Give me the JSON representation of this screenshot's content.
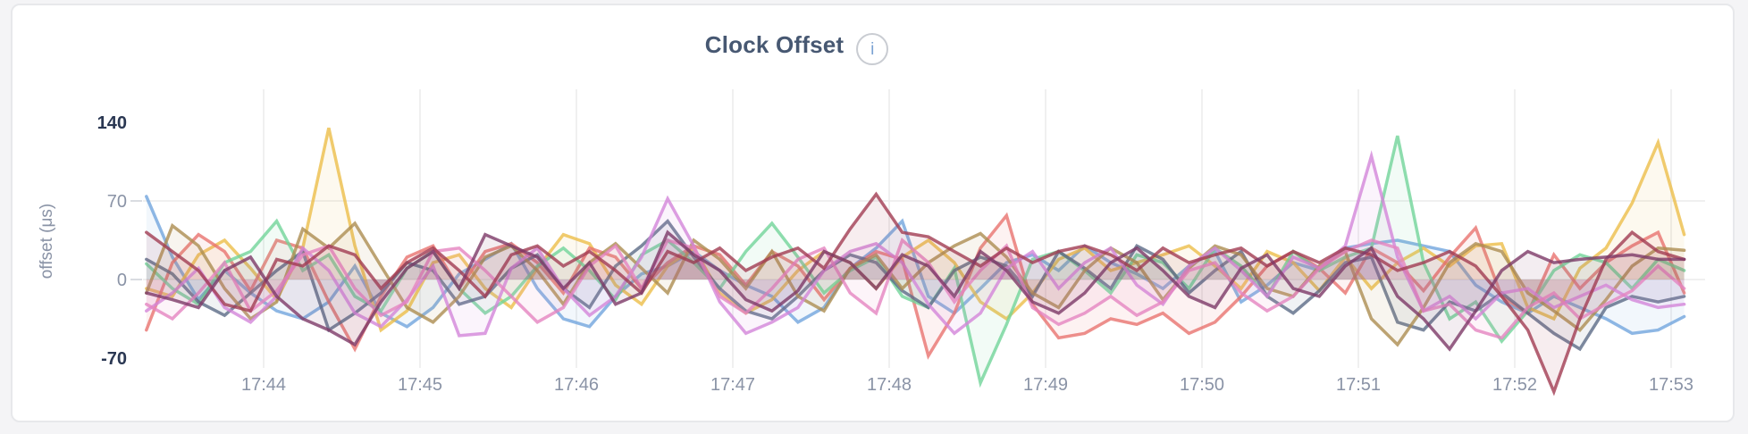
{
  "header": {
    "title": "Clock Offset",
    "info_icon_glyph": "i"
  },
  "chart_data": {
    "type": "line",
    "title": "Clock Offset",
    "xlabel": "",
    "ylabel": "offset (μs)",
    "x_start": "17:43:15",
    "x_step_seconds": 10,
    "x_ticks": [
      "17:44",
      "17:45",
      "17:46",
      "17:47",
      "17:48",
      "17:49",
      "17:50",
      "17:51",
      "17:52",
      "17:53"
    ],
    "y_ticks": [
      140,
      70,
      0,
      -70
    ],
    "y_ticks_emphasized": [
      140,
      -70
    ],
    "y_gridlines": [
      70,
      0
    ],
    "ylim": [
      -70,
      140
    ],
    "grid": "on",
    "legend": "none",
    "colors": {
      "tick_minor": "#8a93a6",
      "tick_extreme": "#2a3752",
      "gridline": "#ececec",
      "title": "#475872"
    },
    "series": [
      {
        "name": "series-1",
        "color": "#72a5dd",
        "values": [
          74,
          20,
          -18,
          8,
          -12,
          -28,
          -35,
          -20,
          12,
          -30,
          -42,
          -25,
          5,
          18,
          32,
          -8,
          -35,
          -42,
          -15,
          5,
          12,
          25,
          8,
          -5,
          -15,
          -38,
          -25,
          10,
          28,
          52,
          -15,
          -30,
          -8,
          15,
          22,
          8,
          30,
          15,
          5,
          -8,
          12,
          25,
          -20,
          -5,
          15,
          8,
          28,
          32,
          35,
          30,
          25,
          -5,
          -20,
          -30,
          -15,
          -25,
          -35,
          -48,
          -45,
          -33
        ]
      },
      {
        "name": "series-2",
        "color": "#ecbe4a",
        "values": [
          -8,
          -15,
          22,
          35,
          10,
          -18,
          28,
          135,
          30,
          -45,
          -28,
          15,
          22,
          -8,
          -25,
          10,
          40,
          32,
          -5,
          -22,
          12,
          28,
          -12,
          -30,
          -18,
          8,
          25,
          15,
          -8,
          20,
          35,
          15,
          -20,
          -35,
          -12,
          18,
          28,
          8,
          15,
          22,
          30,
          12,
          -8,
          25,
          15,
          -10,
          20,
          -8,
          15,
          28,
          12,
          30,
          32,
          -25,
          -35,
          10,
          28,
          68,
          122,
          40
        ]
      },
      {
        "name": "series-3",
        "color": "#e8736f",
        "values": [
          -45,
          15,
          40,
          25,
          -10,
          35,
          28,
          -20,
          -62,
          -15,
          20,
          30,
          -8,
          25,
          32,
          15,
          -12,
          28,
          20,
          -8,
          15,
          30,
          22,
          -5,
          25,
          12,
          -18,
          10,
          25,
          18,
          -68,
          -30,
          28,
          57,
          -22,
          -52,
          -48,
          -35,
          -40,
          -30,
          -48,
          -38,
          -15,
          12,
          25,
          10,
          -12,
          28,
          15,
          -10,
          20,
          46,
          -15,
          -30,
          22,
          -8,
          15,
          30,
          42,
          -12
        ]
      },
      {
        "name": "series-4",
        "color": "#72d49a",
        "values": [
          14,
          -8,
          -22,
          15,
          25,
          52,
          8,
          22,
          -15,
          -28,
          10,
          25,
          -8,
          -30,
          -15,
          12,
          28,
          8,
          -18,
          22,
          35,
          15,
          -8,
          25,
          50,
          20,
          -12,
          8,
          20,
          -15,
          -25,
          10,
          -92,
          -40,
          18,
          25,
          8,
          -12,
          22,
          15,
          -8,
          28,
          12,
          -15,
          25,
          8,
          20,
          28,
          128,
          15,
          -35,
          -20,
          -55,
          -28,
          8,
          22,
          15,
          -8,
          18,
          8
        ]
      },
      {
        "name": "series-5",
        "color": "#5d6b87",
        "values": [
          18,
          5,
          -20,
          -32,
          -12,
          8,
          25,
          -45,
          -30,
          -12,
          15,
          8,
          -22,
          -15,
          10,
          22,
          -8,
          -25,
          12,
          30,
          52,
          20,
          -8,
          -28,
          -35,
          -15,
          8,
          22,
          15,
          -10,
          -25,
          8,
          20,
          12,
          -15,
          25,
          10,
          -8,
          30,
          18,
          -12,
          8,
          25,
          -15,
          -30,
          -10,
          15,
          20,
          -38,
          -45,
          -20,
          -28,
          -12,
          -30,
          -48,
          -62,
          -25,
          -15,
          -20,
          -15
        ]
      },
      {
        "name": "series-6",
        "color": "#ac8d51",
        "values": [
          -12,
          48,
          30,
          -8,
          -35,
          -20,
          45,
          28,
          50,
          12,
          -25,
          -38,
          -15,
          20,
          30,
          8,
          -22,
          15,
          32,
          10,
          -12,
          35,
          18,
          -8,
          25,
          -15,
          -28,
          10,
          22,
          -8,
          15,
          30,
          41,
          20,
          -12,
          -25,
          8,
          28,
          15,
          -18,
          10,
          30,
          22,
          -8,
          -15,
          12,
          25,
          -35,
          -58,
          -25,
          15,
          32,
          25,
          -12,
          -28,
          -45,
          -18,
          12,
          28,
          26
        ]
      },
      {
        "name": "series-7",
        "color": "#d386d9",
        "values": [
          -28,
          -12,
          10,
          -25,
          -38,
          -15,
          28,
          8,
          -30,
          -42,
          -18,
          12,
          -50,
          -48,
          10,
          28,
          -8,
          -32,
          -15,
          20,
          72,
          30,
          -20,
          -48,
          -38,
          -25,
          8,
          25,
          32,
          15,
          -22,
          -48,
          -30,
          10,
          25,
          -8,
          15,
          28,
          -5,
          -22,
          12,
          28,
          8,
          -15,
          20,
          10,
          30,
          110,
          20,
          -28,
          -15,
          -35,
          -12,
          -8,
          -25,
          -15,
          -5,
          -18,
          -25,
          -22
        ]
      },
      {
        "name": "series-8",
        "color": "#e584c1",
        "values": [
          -22,
          -35,
          -12,
          15,
          -28,
          -10,
          22,
          30,
          -8,
          -32,
          -20,
          25,
          28,
          8,
          -15,
          -38,
          -25,
          12,
          30,
          -8,
          35,
          28,
          -15,
          -30,
          -8,
          18,
          28,
          -12,
          -30,
          35,
          15,
          -20,
          8,
          30,
          -25,
          -40,
          -30,
          -15,
          -32,
          -20,
          8,
          15,
          -12,
          -28,
          -15,
          10,
          25,
          35,
          28,
          -28,
          -22,
          -45,
          -52,
          -25,
          -12,
          -35,
          -22,
          -10,
          12,
          -8
        ]
      },
      {
        "name": "series-9",
        "color": "#a13c52",
        "values": [
          42,
          25,
          8,
          -22,
          -28,
          18,
          12,
          30,
          22,
          -8,
          15,
          28,
          8,
          -15,
          22,
          30,
          12,
          25,
          8,
          -12,
          25,
          15,
          28,
          8,
          20,
          28,
          10,
          45,
          76,
          42,
          38,
          25,
          12,
          28,
          15,
          25,
          30,
          22,
          8,
          28,
          15,
          22,
          28,
          12,
          25,
          15,
          28,
          22,
          8,
          15,
          25,
          12,
          -15,
          -45,
          -100,
          -35,
          18,
          42,
          25,
          18
        ]
      },
      {
        "name": "series-10",
        "color": "#7d3968",
        "values": [
          -12,
          -18,
          -25,
          8,
          20,
          -15,
          -35,
          -45,
          -58,
          -20,
          10,
          25,
          -8,
          40,
          30,
          20,
          -8,
          15,
          -22,
          -12,
          42,
          22,
          8,
          -18,
          -28,
          -10,
          25,
          15,
          -8,
          22,
          12,
          -15,
          25,
          8,
          -20,
          -30,
          -12,
          15,
          28,
          8,
          -15,
          -25,
          10,
          22,
          -8,
          -15,
          12,
          28,
          -15,
          -35,
          -62,
          -28,
          8,
          25,
          15,
          18,
          20,
          22,
          18,
          18
        ]
      }
    ]
  }
}
